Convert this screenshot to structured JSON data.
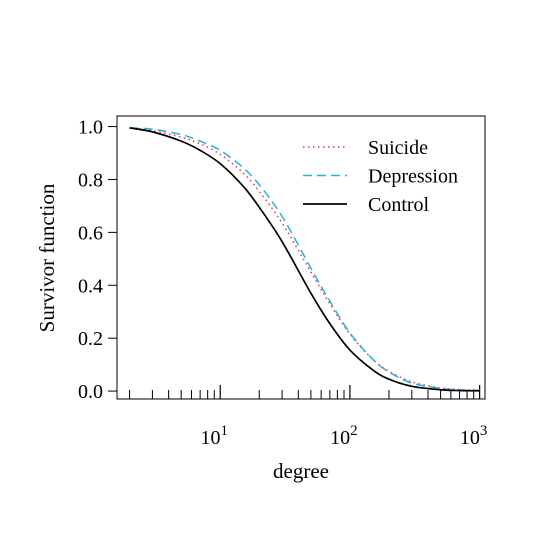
{
  "chart_data": {
    "type": "line",
    "xlabel": "degree",
    "ylabel": "Survivor function",
    "x_scale": "log10",
    "xlim": [
      1.6,
      1100
    ],
    "ylim": [
      -0.03,
      1.04
    ],
    "grid": false,
    "legend_position": "top-right",
    "y_ticks": [
      {
        "value": 0.0,
        "label": "0.0"
      },
      {
        "value": 0.2,
        "label": "0.2"
      },
      {
        "value": 0.4,
        "label": "0.4"
      },
      {
        "value": 0.6,
        "label": "0.6"
      },
      {
        "value": 0.8,
        "label": "0.8"
      },
      {
        "value": 1.0,
        "label": "1.0"
      }
    ],
    "x_major_ticks": [
      {
        "value": 10,
        "base": "10",
        "exponent": "1"
      },
      {
        "value": 100,
        "base": "10",
        "exponent": "2"
      },
      {
        "value": 1000,
        "base": "10",
        "exponent": "3"
      }
    ],
    "x": [
      2,
      3,
      5,
      7,
      10,
      15,
      20,
      30,
      50,
      70,
      100,
      150,
      200,
      300,
      500,
      700,
      1000
    ],
    "series": [
      {
        "name": "Suicide",
        "color": "#ff3030",
        "style": "dotted",
        "values": [
          0.995,
          0.985,
          0.96,
          0.935,
          0.895,
          0.825,
          0.755,
          0.635,
          0.45,
          0.33,
          0.215,
          0.12,
          0.075,
          0.035,
          0.012,
          0.006,
          0.003
        ]
      },
      {
        "name": "Depression",
        "color": "#1eb4e6",
        "style": "dashed",
        "values": [
          0.995,
          0.99,
          0.97,
          0.945,
          0.91,
          0.845,
          0.78,
          0.66,
          0.465,
          0.34,
          0.22,
          0.12,
          0.072,
          0.03,
          0.01,
          0.005,
          0.002
        ]
      },
      {
        "name": "Control",
        "color": "#000000",
        "style": "solid",
        "values": [
          0.995,
          0.98,
          0.945,
          0.91,
          0.86,
          0.775,
          0.695,
          0.565,
          0.37,
          0.255,
          0.155,
          0.08,
          0.045,
          0.018,
          0.005,
          0.002,
          0.001
        ]
      }
    ]
  }
}
